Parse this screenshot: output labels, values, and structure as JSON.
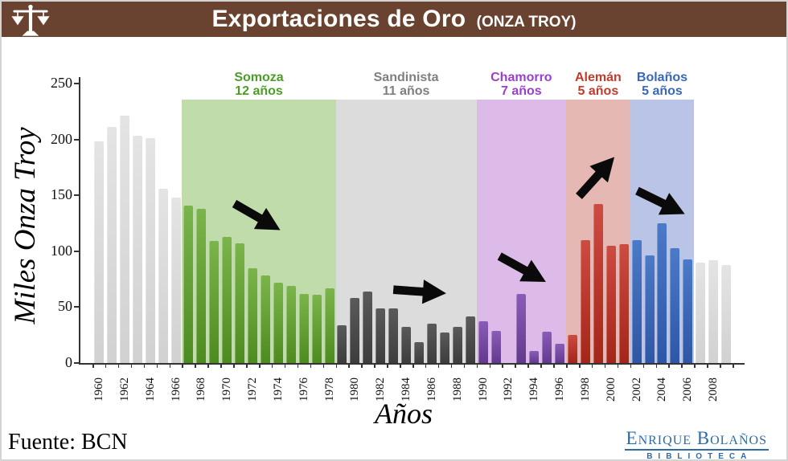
{
  "header": {
    "title": "Exportaciones de Oro",
    "subtitle": "(ONZA TROY)",
    "brand_color": "#6a4330",
    "icon": "scales-of-justice-icon"
  },
  "chart_data": {
    "type": "bar",
    "title": "Exportaciones de Oro (Onza Troy)",
    "xlabel": "Años",
    "ylabel": "Miles Onza Troy",
    "ylim": [
      0,
      250
    ],
    "yticks": [
      "0",
      "50",
      "100",
      "150",
      "200",
      "250"
    ],
    "x_tick_labels": [
      "1960",
      "1962",
      "1964",
      "1966",
      "1968",
      "1970",
      "1972",
      "1974",
      "1976",
      "1978",
      "1980",
      "1982",
      "1984",
      "1986",
      "1988",
      "1990",
      "1992",
      "1994",
      "1996",
      "1998",
      "2000",
      "2002",
      "2004",
      "2006",
      "2008"
    ],
    "grid": false,
    "years": [
      1960,
      1961,
      1962,
      1963,
      1964,
      1965,
      1966,
      1967,
      1968,
      1969,
      1970,
      1971,
      1972,
      1973,
      1974,
      1975,
      1976,
      1977,
      1978,
      1979,
      1980,
      1981,
      1982,
      1983,
      1984,
      1985,
      1986,
      1987,
      1988,
      1989,
      1990,
      1991,
      1992,
      1993,
      1994,
      1995,
      1996,
      1997,
      1998,
      1999,
      2000,
      2001,
      2002,
      2003,
      2004,
      2005,
      2006,
      2007,
      2008,
      2009
    ],
    "values": [
      198,
      211,
      221,
      203,
      201,
      156,
      148,
      141,
      138,
      109,
      113,
      107,
      85,
      78,
      72,
      69,
      62,
      61,
      67,
      34,
      58,
      64,
      49,
      49,
      32,
      19,
      35,
      27,
      32,
      42,
      37,
      29,
      0,
      62,
      11,
      28,
      17,
      25,
      110,
      142,
      105,
      106,
      110,
      96,
      125,
      103,
      93,
      90,
      92,
      88
    ],
    "default_bar_color_top": "#e4e4e4",
    "default_bar_color_bottom": "#d1d1d1",
    "periods": [
      {
        "id": "somoza",
        "name": "Somoza",
        "duration": "12 años",
        "start": 1967,
        "end": 1978,
        "bar_top": "#7ab54b",
        "bar_bottom": "#4c8b20",
        "band": "#c0dcab",
        "text": "#4e9c28"
      },
      {
        "id": "sandinista",
        "name": "Sandinista",
        "duration": "11 años",
        "start": 1979,
        "end": 1989,
        "bar_top": "#5a5a5a",
        "bar_bottom": "#3d3d3d",
        "band": "#dcdcdc",
        "text": "#7f7f7f"
      },
      {
        "id": "chamorro",
        "name": "Chamorro",
        "duration": "7 años",
        "start": 1990,
        "end": 1996,
        "bar_top": "#8a5cb8",
        "bar_bottom": "#63398f",
        "band": "#dcbbe8",
        "text": "#9a3fcd"
      },
      {
        "id": "aleman",
        "name": "Alemán",
        "duration": "5 años",
        "start": 1997,
        "end": 2001,
        "bar_top": "#cc4b42",
        "bar_bottom": "#a4251a",
        "band": "#e5b8b4",
        "text": "#c03a2e"
      },
      {
        "id": "bolanos",
        "name": "Bolaños",
        "duration": "5 años",
        "start": 2002,
        "end": 2006,
        "bar_top": "#4b7ac8",
        "bar_bottom": "#2e56a5",
        "band": "#bac4e6",
        "text": "#3a67b8"
      }
    ],
    "annotations": [
      {
        "period": "Somoza",
        "trend": "declining",
        "cx": 318,
        "cy": 268,
        "angle": 30
      },
      {
        "period": "Sandinista",
        "trend": "flat",
        "cx": 520,
        "cy": 361,
        "angle": 4
      },
      {
        "period": "Chamorro",
        "trend": "declining",
        "cx": 648,
        "cy": 333,
        "angle": 29
      },
      {
        "period": "Alemán",
        "trend": "rising",
        "cx": 740,
        "cy": 218,
        "angle": -48
      },
      {
        "period": "Bolaños",
        "trend": "declining",
        "cx": 820,
        "cy": 250,
        "angle": 26
      }
    ]
  },
  "footer": {
    "source": "Fuente: BCN"
  },
  "logo": {
    "line1": "Enrique Bolaños",
    "line2": "BIBLIOTECA"
  }
}
